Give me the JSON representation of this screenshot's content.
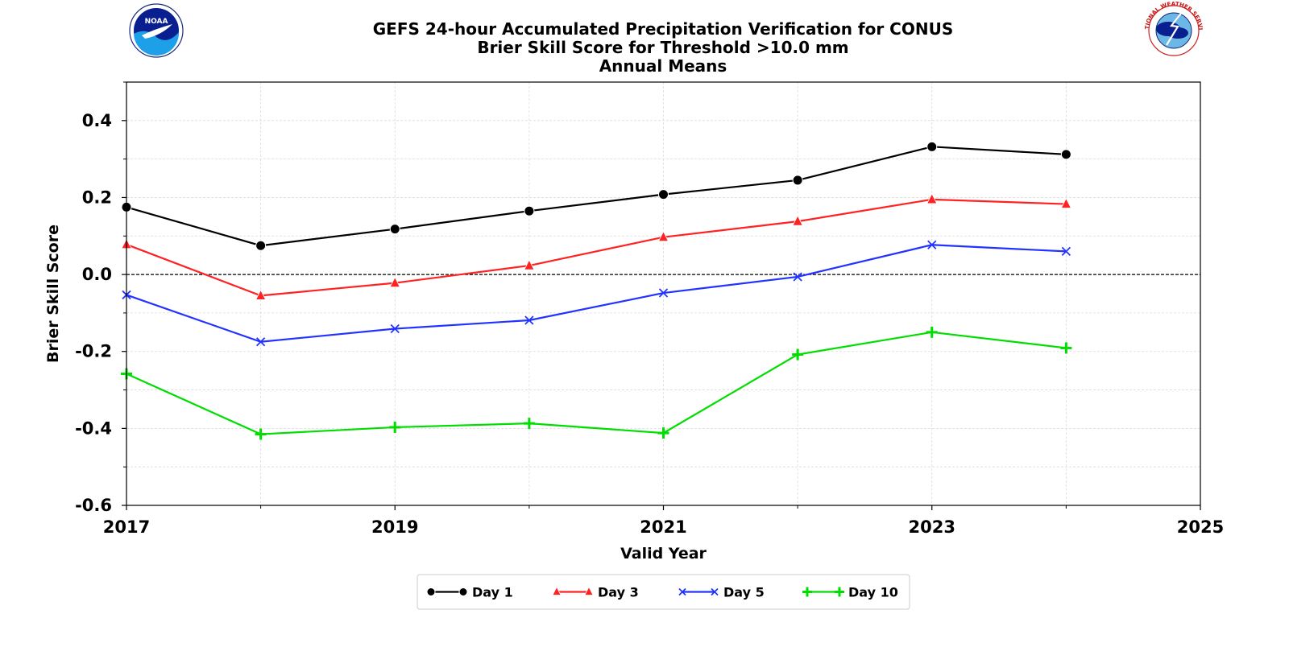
{
  "header": {
    "title_lines": [
      "GEFS 24-hour Accumulated Precipitation Verification for CONUS",
      "Brier Skill Score for Threshold >10.0 mm",
      "Annual Means"
    ],
    "left_logo": {
      "icon": "noaa-logo",
      "text": "NOAA"
    },
    "right_logo": {
      "icon": "national-weather-service-logo",
      "text": "NATIONAL WEATHER SERVICE"
    }
  },
  "chart_data": {
    "type": "line",
    "xlabel": "Valid Year",
    "ylabel": "Brier Skill Score",
    "xlim": [
      2017,
      2025
    ],
    "ylim": [
      -0.6,
      0.5
    ],
    "x_ticks": [
      2017,
      2019,
      2021,
      2023,
      2025
    ],
    "x_minor_ticks": [
      2018,
      2020,
      2022,
      2024
    ],
    "y_ticks": [
      -0.6,
      -0.4,
      -0.2,
      0.0,
      0.2,
      0.4
    ],
    "y_tick_labels": [
      "-0.6",
      "-0.4",
      "-0.2",
      "0.0",
      "0.2",
      "0.4"
    ],
    "grid": true,
    "zero_line": {
      "y": 0,
      "style": "dashed",
      "color": "#000000"
    },
    "legend_position": "bottom-center",
    "x": [
      2017,
      2018,
      2019,
      2020,
      2021,
      2022,
      2023,
      2024
    ],
    "series": [
      {
        "name": "Day 1",
        "color": "#000000",
        "marker": "circle",
        "values": [
          0.175,
          0.075,
          0.118,
          0.165,
          0.208,
          0.245,
          0.332,
          0.312
        ]
      },
      {
        "name": "Day 3",
        "color": "#ff2222",
        "marker": "triangle",
        "values": [
          0.078,
          -0.055,
          -0.022,
          0.023,
          0.097,
          0.138,
          0.195,
          0.183
        ]
      },
      {
        "name": "Day 5",
        "color": "#2233ff",
        "marker": "x",
        "values": [
          -0.053,
          -0.175,
          -0.141,
          -0.119,
          -0.048,
          -0.006,
          0.077,
          0.06
        ]
      },
      {
        "name": "Day 10",
        "color": "#00dd00",
        "marker": "plus",
        "values": [
          -0.258,
          -0.415,
          -0.397,
          -0.387,
          -0.412,
          -0.208,
          -0.15,
          -0.191
        ]
      }
    ]
  }
}
